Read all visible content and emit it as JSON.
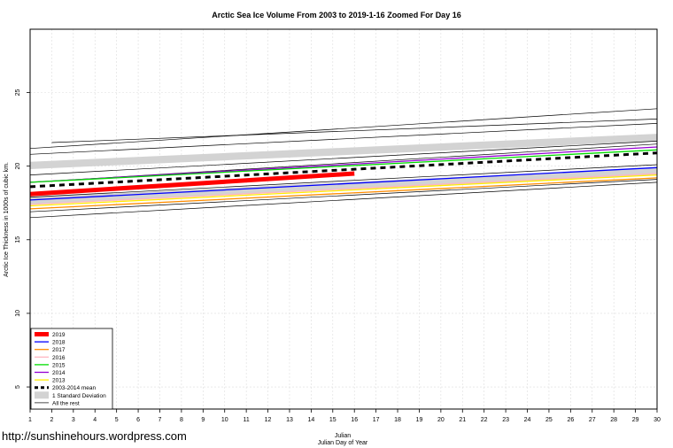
{
  "chart_data": {
    "type": "line",
    "title": "Arctic Sea Ice Volume From 2003 to 2019-1-16 Zoomed For Day 16",
    "xlabel": "Julian",
    "xlabel2": "Julian Day of Year",
    "ylabel": "Arctic Ice Thickness in 1000s of cubic km.",
    "watermark": "http://sunshinehours.wordpress.com",
    "xlim": [
      1,
      30
    ],
    "ylim": [
      3.5,
      29.3
    ],
    "x_ticks": [
      1,
      2,
      3,
      4,
      5,
      6,
      7,
      8,
      9,
      10,
      11,
      12,
      13,
      14,
      15,
      16,
      17,
      18,
      19,
      20,
      21,
      22,
      23,
      24,
      25,
      26,
      27,
      28,
      29,
      30
    ],
    "y_ticks": [
      5,
      10,
      15,
      20,
      25
    ],
    "grid": true,
    "legend_position": "bottom-left",
    "std_band": {
      "name": "1 Standard Deviation",
      "color": "#d3d3d3",
      "outer_upper": [
        [
          1,
          20.3
        ],
        [
          30,
          22.2
        ]
      ],
      "inner_upper": [
        [
          1,
          19.8
        ],
        [
          30,
          21.7
        ]
      ],
      "inner_lower": [
        [
          1,
          17.9
        ],
        [
          30,
          19.9
        ]
      ],
      "outer_lower": [
        [
          1,
          17.4
        ],
        [
          30,
          19.4
        ]
      ]
    },
    "series": [
      {
        "name": "2019",
        "color": "#ff0000",
        "width": 5,
        "dash": "",
        "points": [
          [
            1,
            18.1
          ],
          [
            16,
            19.5
          ]
        ]
      },
      {
        "name": "2018",
        "color": "#0000ff",
        "width": 1.3,
        "dash": "",
        "points": [
          [
            1,
            17.7
          ],
          [
            30,
            19.9
          ]
        ]
      },
      {
        "name": "2017",
        "color": "#ff8c00",
        "width": 1.3,
        "dash": "",
        "points": [
          [
            1,
            17.1
          ],
          [
            30,
            19.2
          ]
        ]
      },
      {
        "name": "2016",
        "color": "#ffb6c1",
        "width": 1.3,
        "dash": "",
        "points": [
          [
            1,
            17.4
          ],
          [
            30,
            19.5
          ]
        ]
      },
      {
        "name": "2015",
        "color": "#00dd00",
        "width": 1.3,
        "dash": "",
        "points": [
          [
            1,
            18.9
          ],
          [
            30,
            21.1
          ]
        ]
      },
      {
        "name": "2014",
        "color": "#9400d3",
        "width": 1.3,
        "dash": "",
        "points": [
          [
            1,
            18.9
          ],
          [
            30,
            21.3
          ]
        ]
      },
      {
        "name": "2013",
        "color": "#ffee00",
        "width": 1.3,
        "dash": "",
        "points": [
          [
            1,
            17.3
          ],
          [
            30,
            19.4
          ]
        ]
      },
      {
        "name": "2003-2014 mean",
        "color": "#000000",
        "width": 3,
        "dash": "6,5",
        "points": [
          [
            1,
            18.6
          ],
          [
            30,
            20.9
          ]
        ]
      },
      {
        "name": "1 Standard Deviation",
        "color": "#d3d3d3",
        "width": 8,
        "dash": "",
        "points": []
      },
      {
        "name": "All the rest",
        "color": "#000000",
        "width": 0.7,
        "dash": "",
        "points": []
      }
    ],
    "other_years": [
      [
        [
          1,
          21.2
        ],
        [
          30,
          23.9
        ]
      ],
      [
        [
          2,
          21.6
        ],
        [
          30,
          23.2
        ]
      ],
      [
        [
          1,
          20.8
        ],
        [
          30,
          22.9
        ]
      ],
      [
        [
          1,
          19.4
        ],
        [
          30,
          21.7
        ]
      ],
      [
        [
          1,
          18.9
        ],
        [
          30,
          21.5
        ]
      ],
      [
        [
          1,
          17.9
        ],
        [
          30,
          20.1
        ]
      ],
      [
        [
          1,
          16.9
        ],
        [
          30,
          19.1
        ]
      ],
      [
        [
          1,
          16.5
        ],
        [
          30,
          18.9
        ]
      ]
    ]
  }
}
